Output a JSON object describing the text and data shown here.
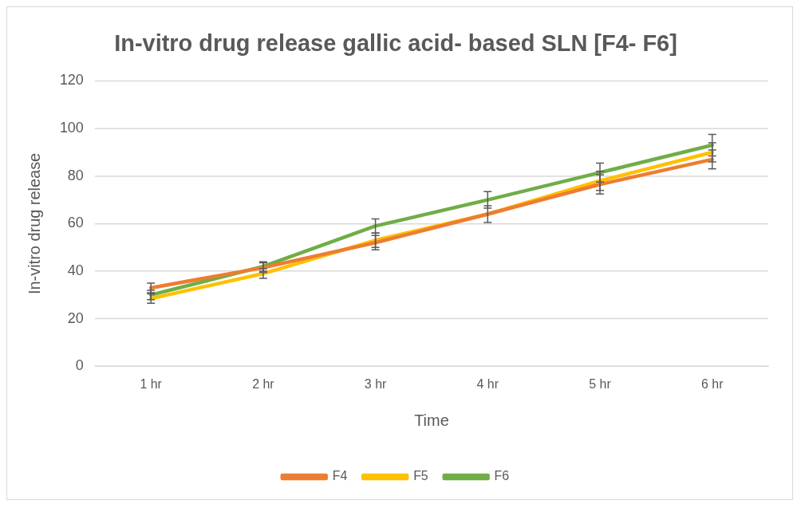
{
  "chart_data": {
    "type": "line",
    "title": "In-vitro drug release gallic acid- based SLN [F4- F6]",
    "xlabel": "Time",
    "ylabel": "In-vitro drug release",
    "categories": [
      "1 hr",
      "2 hr",
      "3 hr",
      "4 hr",
      "5 hr",
      "6 hr"
    ],
    "series": [
      {
        "name": "F4",
        "color": "#ed7d31",
        "values": [
          33,
          41.5,
          52,
          64,
          76.5,
          87
        ],
        "errors": [
          2,
          2,
          3,
          3.5,
          4,
          4
        ]
      },
      {
        "name": "F5",
        "color": "#ffc000",
        "values": [
          28.5,
          39,
          53,
          64,
          78,
          90
        ],
        "errors": [
          2,
          2,
          3,
          null,
          4,
          4
        ]
      },
      {
        "name": "F6",
        "color": "#70ad47",
        "values": [
          30,
          42,
          59,
          70,
          81.5,
          93
        ],
        "errors": [
          2,
          2,
          3,
          3.5,
          4,
          4.5
        ]
      }
    ],
    "ylim": [
      0,
      120
    ],
    "yticks": [
      0,
      20,
      40,
      60,
      80,
      100,
      120
    ],
    "grid": "y",
    "legend": "bottom",
    "marker": "none",
    "line_style": "solid"
  }
}
